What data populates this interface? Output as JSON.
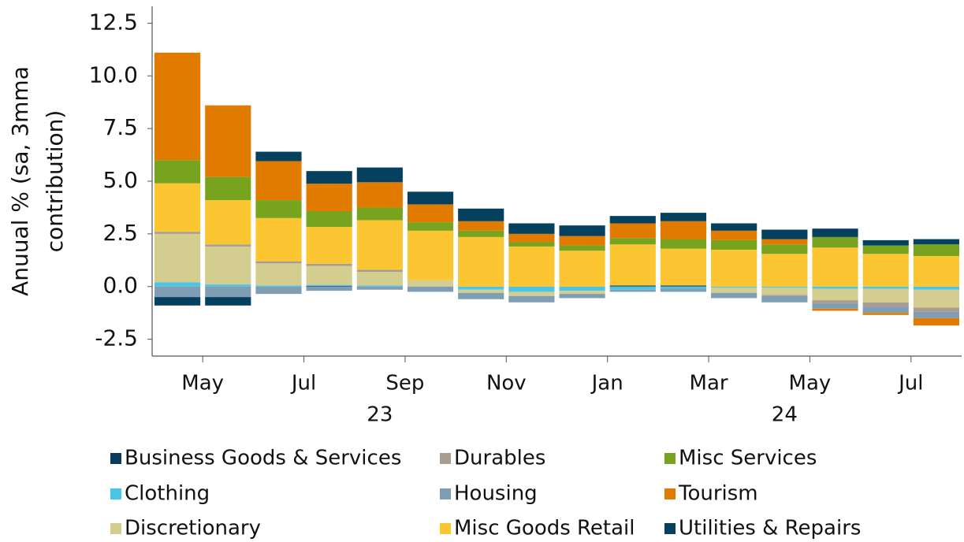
{
  "chart_data": {
    "type": "stacked_bar",
    "ylabel": "Anuual % (sa, 3mma contribution)",
    "categories": [
      null,
      "May",
      null,
      "Jul",
      null,
      "Sep",
      null,
      "Nov",
      null,
      "Jan",
      null,
      "Mar",
      null,
      "May",
      null,
      "Jul"
    ],
    "year_labels": [
      "23",
      "24"
    ],
    "ylim": [
      -3.3,
      13.3
    ],
    "yticks": [
      -2.5,
      {
        "value": 0,
        "label": "0.0"
      },
      2.5,
      {
        "value": 5,
        "label": "5.0"
      },
      7.5,
      {
        "value": 10,
        "label": "10.0"
      },
      12.5
    ],
    "series": [
      {
        "name": "Business Goods & Services",
        "color": "#0b3a5c",
        "values": [
          0,
          0,
          0,
          0.03,
          0,
          0,
          0,
          0,
          0,
          0.05,
          0.05,
          0,
          0,
          0,
          0,
          0
        ]
      },
      {
        "name": "Clothing",
        "color": "#4cc4e6",
        "values": [
          0.2,
          0.1,
          0.05,
          0.05,
          0.05,
          0,
          -0.15,
          -0.25,
          -0.2,
          -0.15,
          -0.1,
          -0.05,
          -0.05,
          -0.1,
          -0.1,
          -0.15
        ]
      },
      {
        "name": "Discretionary",
        "color": "#d3cd8f",
        "values": [
          2.3,
          1.8,
          1.05,
          0.9,
          0.65,
          0.3,
          -0.15,
          -0.2,
          -0.15,
          0,
          0,
          -0.25,
          -0.35,
          -0.55,
          -0.65,
          -0.85
        ]
      },
      {
        "name": "Durables",
        "color": "#a99c91",
        "values": [
          0.1,
          0.1,
          0.1,
          0.1,
          0.1,
          0,
          0,
          0,
          0,
          0,
          0,
          0,
          -0.05,
          -0.15,
          -0.2,
          -0.2
        ]
      },
      {
        "name": "Housing",
        "color": "#7f9db3",
        "values": [
          -0.5,
          -0.5,
          -0.35,
          -0.2,
          -0.15,
          -0.25,
          -0.3,
          -0.3,
          -0.2,
          -0.1,
          -0.15,
          -0.25,
          -0.3,
          -0.25,
          -0.3,
          -0.3
        ]
      },
      {
        "name": "Misc Goods Retail",
        "color": "#fbc632",
        "values": [
          2.3,
          2.1,
          2.05,
          1.75,
          2.35,
          2.35,
          2.35,
          1.9,
          1.7,
          1.95,
          1.75,
          1.75,
          1.55,
          1.85,
          1.55,
          1.45
        ]
      },
      {
        "name": "Misc Services",
        "color": "#77a31e",
        "values": [
          1.1,
          1.1,
          0.85,
          0.75,
          0.6,
          0.4,
          0.3,
          0.2,
          0.25,
          0.3,
          0.45,
          0.45,
          0.45,
          0.5,
          0.4,
          0.55
        ]
      },
      {
        "name": "Tourism",
        "color": "#e07b00",
        "values": [
          5.1,
          3.4,
          1.85,
          1.3,
          1.2,
          0.85,
          0.45,
          0.4,
          0.45,
          0.7,
          0.85,
          0.45,
          0.25,
          -0.1,
          -0.1,
          -0.35
        ]
      },
      {
        "name": "Utilities & Repairs",
        "color": "#06405f",
        "values": [
          -0.4,
          -0.4,
          0.45,
          0.6,
          0.7,
          0.6,
          0.6,
          0.5,
          0.5,
          0.35,
          0.4,
          0.35,
          0.45,
          0.4,
          0.25,
          0.25
        ]
      }
    ]
  }
}
